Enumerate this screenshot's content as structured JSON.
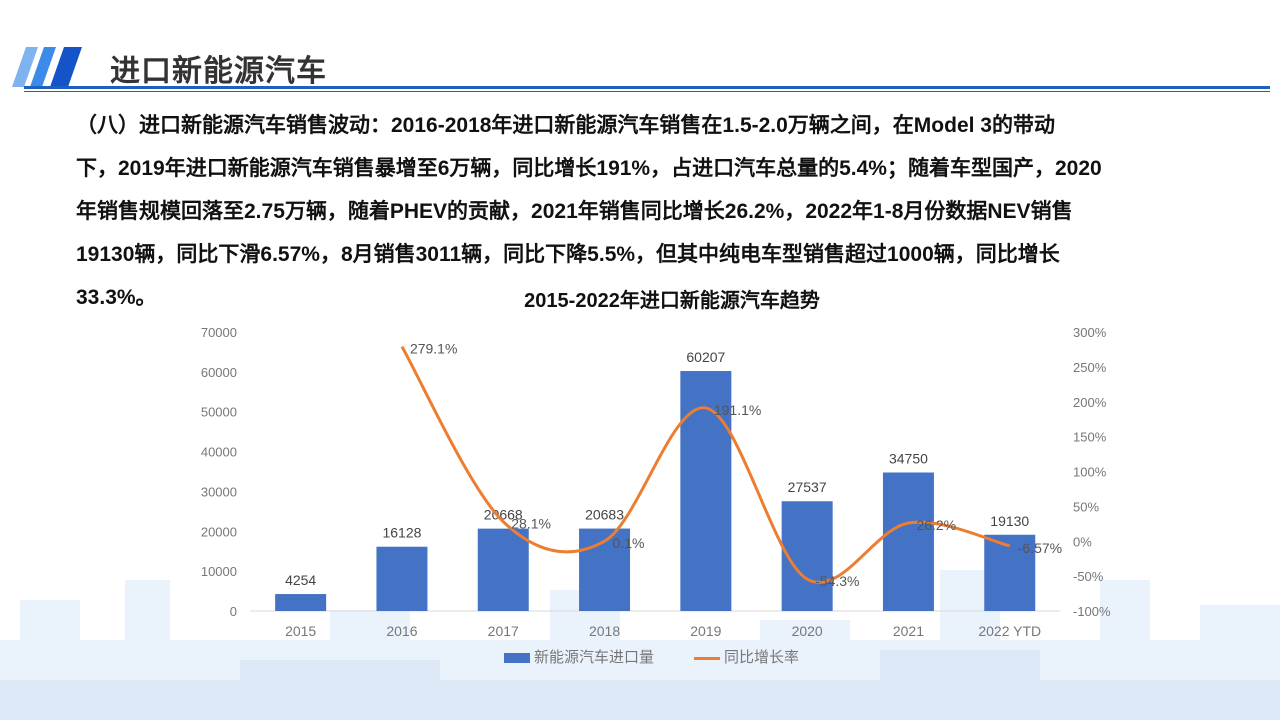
{
  "header": {
    "title": "进口新能源汽车"
  },
  "paragraph": [
    "（八）进口新能源汽车销售波动：2016-2018年进口新能源汽车销售在1.5-2.0万辆之间，在Model 3的带动",
    "下，2019年进口新能源汽车销售暴增至6万辆，同比增长191%，占进口汽车总量的5.4%；随着车型国产，2020",
    "年销售规模回落至2.75万辆，随着PHEV的贡献，2021年销售同比增长26.2%，2022年1-8月份数据NEV销售",
    "19130辆，同比下滑6.57%，8月销售3011辆，同比下降5.5%，但其中纯电车型销售超过1000辆，同比增长",
    "33.3%。"
  ],
  "colors": {
    "bar": "#4472c4",
    "line": "#ed7d31",
    "accent": "#1f5fbf"
  },
  "chart_data": {
    "type": "bar+line",
    "title": "2015-2022年进口新能源汽车趋势",
    "categories": [
      "2015",
      "2016",
      "2017",
      "2018",
      "2019",
      "2020",
      "2021",
      "2022 YTD"
    ],
    "series": [
      {
        "name": "新能源汽车进口量",
        "type": "bar",
        "axis": "left",
        "values": [
          4254,
          16128,
          20668,
          20683,
          60207,
          27537,
          34750,
          19130
        ],
        "labels": [
          "4254",
          "16128",
          "20668",
          "20683",
          "60207",
          "27537",
          "34750",
          "19130"
        ]
      },
      {
        "name": "同比增长率",
        "type": "line",
        "axis": "right",
        "values": [
          null,
          279.1,
          28.1,
          0.1,
          191.1,
          -54.3,
          26.2,
          -6.57
        ],
        "labels": [
          "",
          "279.1%",
          "28.1%",
          "0.1%",
          "191.1%",
          "-54.3%",
          "26.2%",
          "-6.57%"
        ]
      }
    ],
    "ylim": [
      0,
      70000
    ],
    "yticks": [
      "0",
      "10000",
      "20000",
      "30000",
      "40000",
      "50000",
      "60000",
      "70000"
    ],
    "y2lim": [
      -100,
      300
    ],
    "y2ticks": [
      "-100%",
      "-50%",
      "0%",
      "50%",
      "100%",
      "150%",
      "200%",
      "250%",
      "300%"
    ],
    "grid": false,
    "legend": "bottom"
  }
}
